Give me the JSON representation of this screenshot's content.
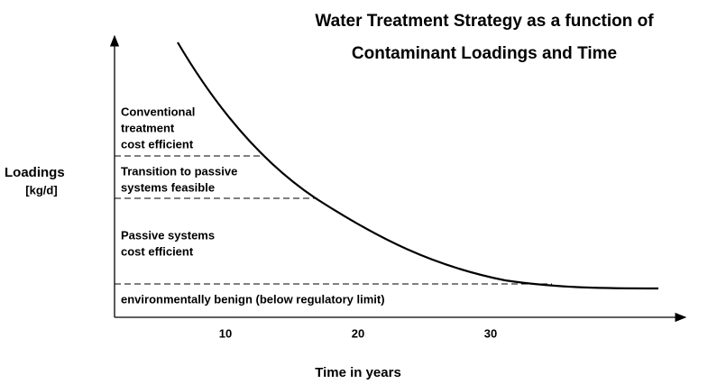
{
  "title": [
    "Water Treatment Strategy as a function of",
    "Contaminant Loadings and Time"
  ],
  "y_axis": {
    "label": [
      "Loadings",
      "[kg/d]"
    ]
  },
  "x_axis": {
    "label": "Time in years",
    "ticks": [
      10,
      20,
      30
    ]
  },
  "regions": [
    {
      "label": [
        "Conventional",
        "treatment",
        "cost efficient"
      ]
    },
    {
      "label": [
        "Transition to passive",
        "systems feasible"
      ]
    },
    {
      "label": [
        "Passive systems",
        "cost efficient"
      ]
    },
    {
      "label": [
        "environmentally benign (below regulatory limit)"
      ]
    }
  ]
}
